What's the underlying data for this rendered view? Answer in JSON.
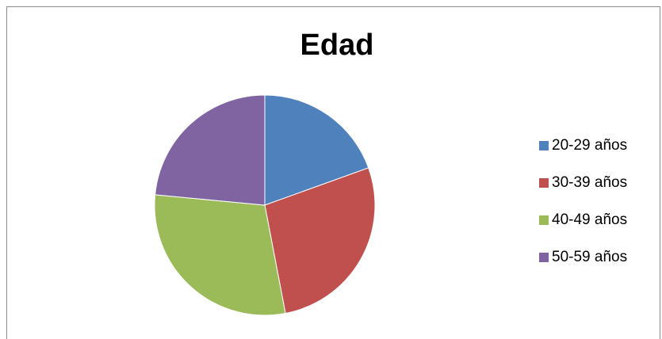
{
  "chart_data": {
    "type": "pie",
    "title": "Edad",
    "categories": [
      "20-29 años",
      "30-39 años",
      "40-49 años",
      "50-59 años"
    ],
    "values": [
      19.5,
      27.5,
      29.5,
      23.5
    ],
    "colors": [
      "#4F81BD",
      "#C0504D",
      "#9BBB59",
      "#8064A2"
    ],
    "legend_position": "right"
  }
}
